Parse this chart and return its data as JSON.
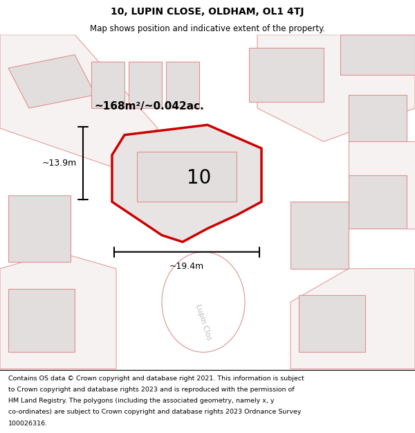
{
  "title": "10, LUPIN CLOSE, OLDHAM, OL1 4TJ",
  "subtitle": "Map shows position and indicative extent of the property.",
  "area_label": "~168m²/~0.042ac.",
  "width_label": "~19.4m",
  "height_label": "~13.9m",
  "property_number": "10",
  "map_bg": "#f7f2f2",
  "building_fill": "#e2dede",
  "highlight_fill": "#e8e4e4",
  "highlight_stroke": "#cc0000",
  "pink_line": "#e09090",
  "street_label": "Lupin Clos",
  "footer_lines": [
    "Contains OS data © Crown copyright and database right 2021. This information is subject",
    "to Crown copyright and database rights 2023 and is reproduced with the permission of",
    "HM Land Registry. The polygons (including the associated geometry, namely x, y",
    "co-ordinates) are subject to Crown copyright and database rights 2023 Ordnance Survey",
    "100026316."
  ],
  "title_fontsize": 10,
  "subtitle_fontsize": 8.5,
  "footer_fontsize": 6.8
}
